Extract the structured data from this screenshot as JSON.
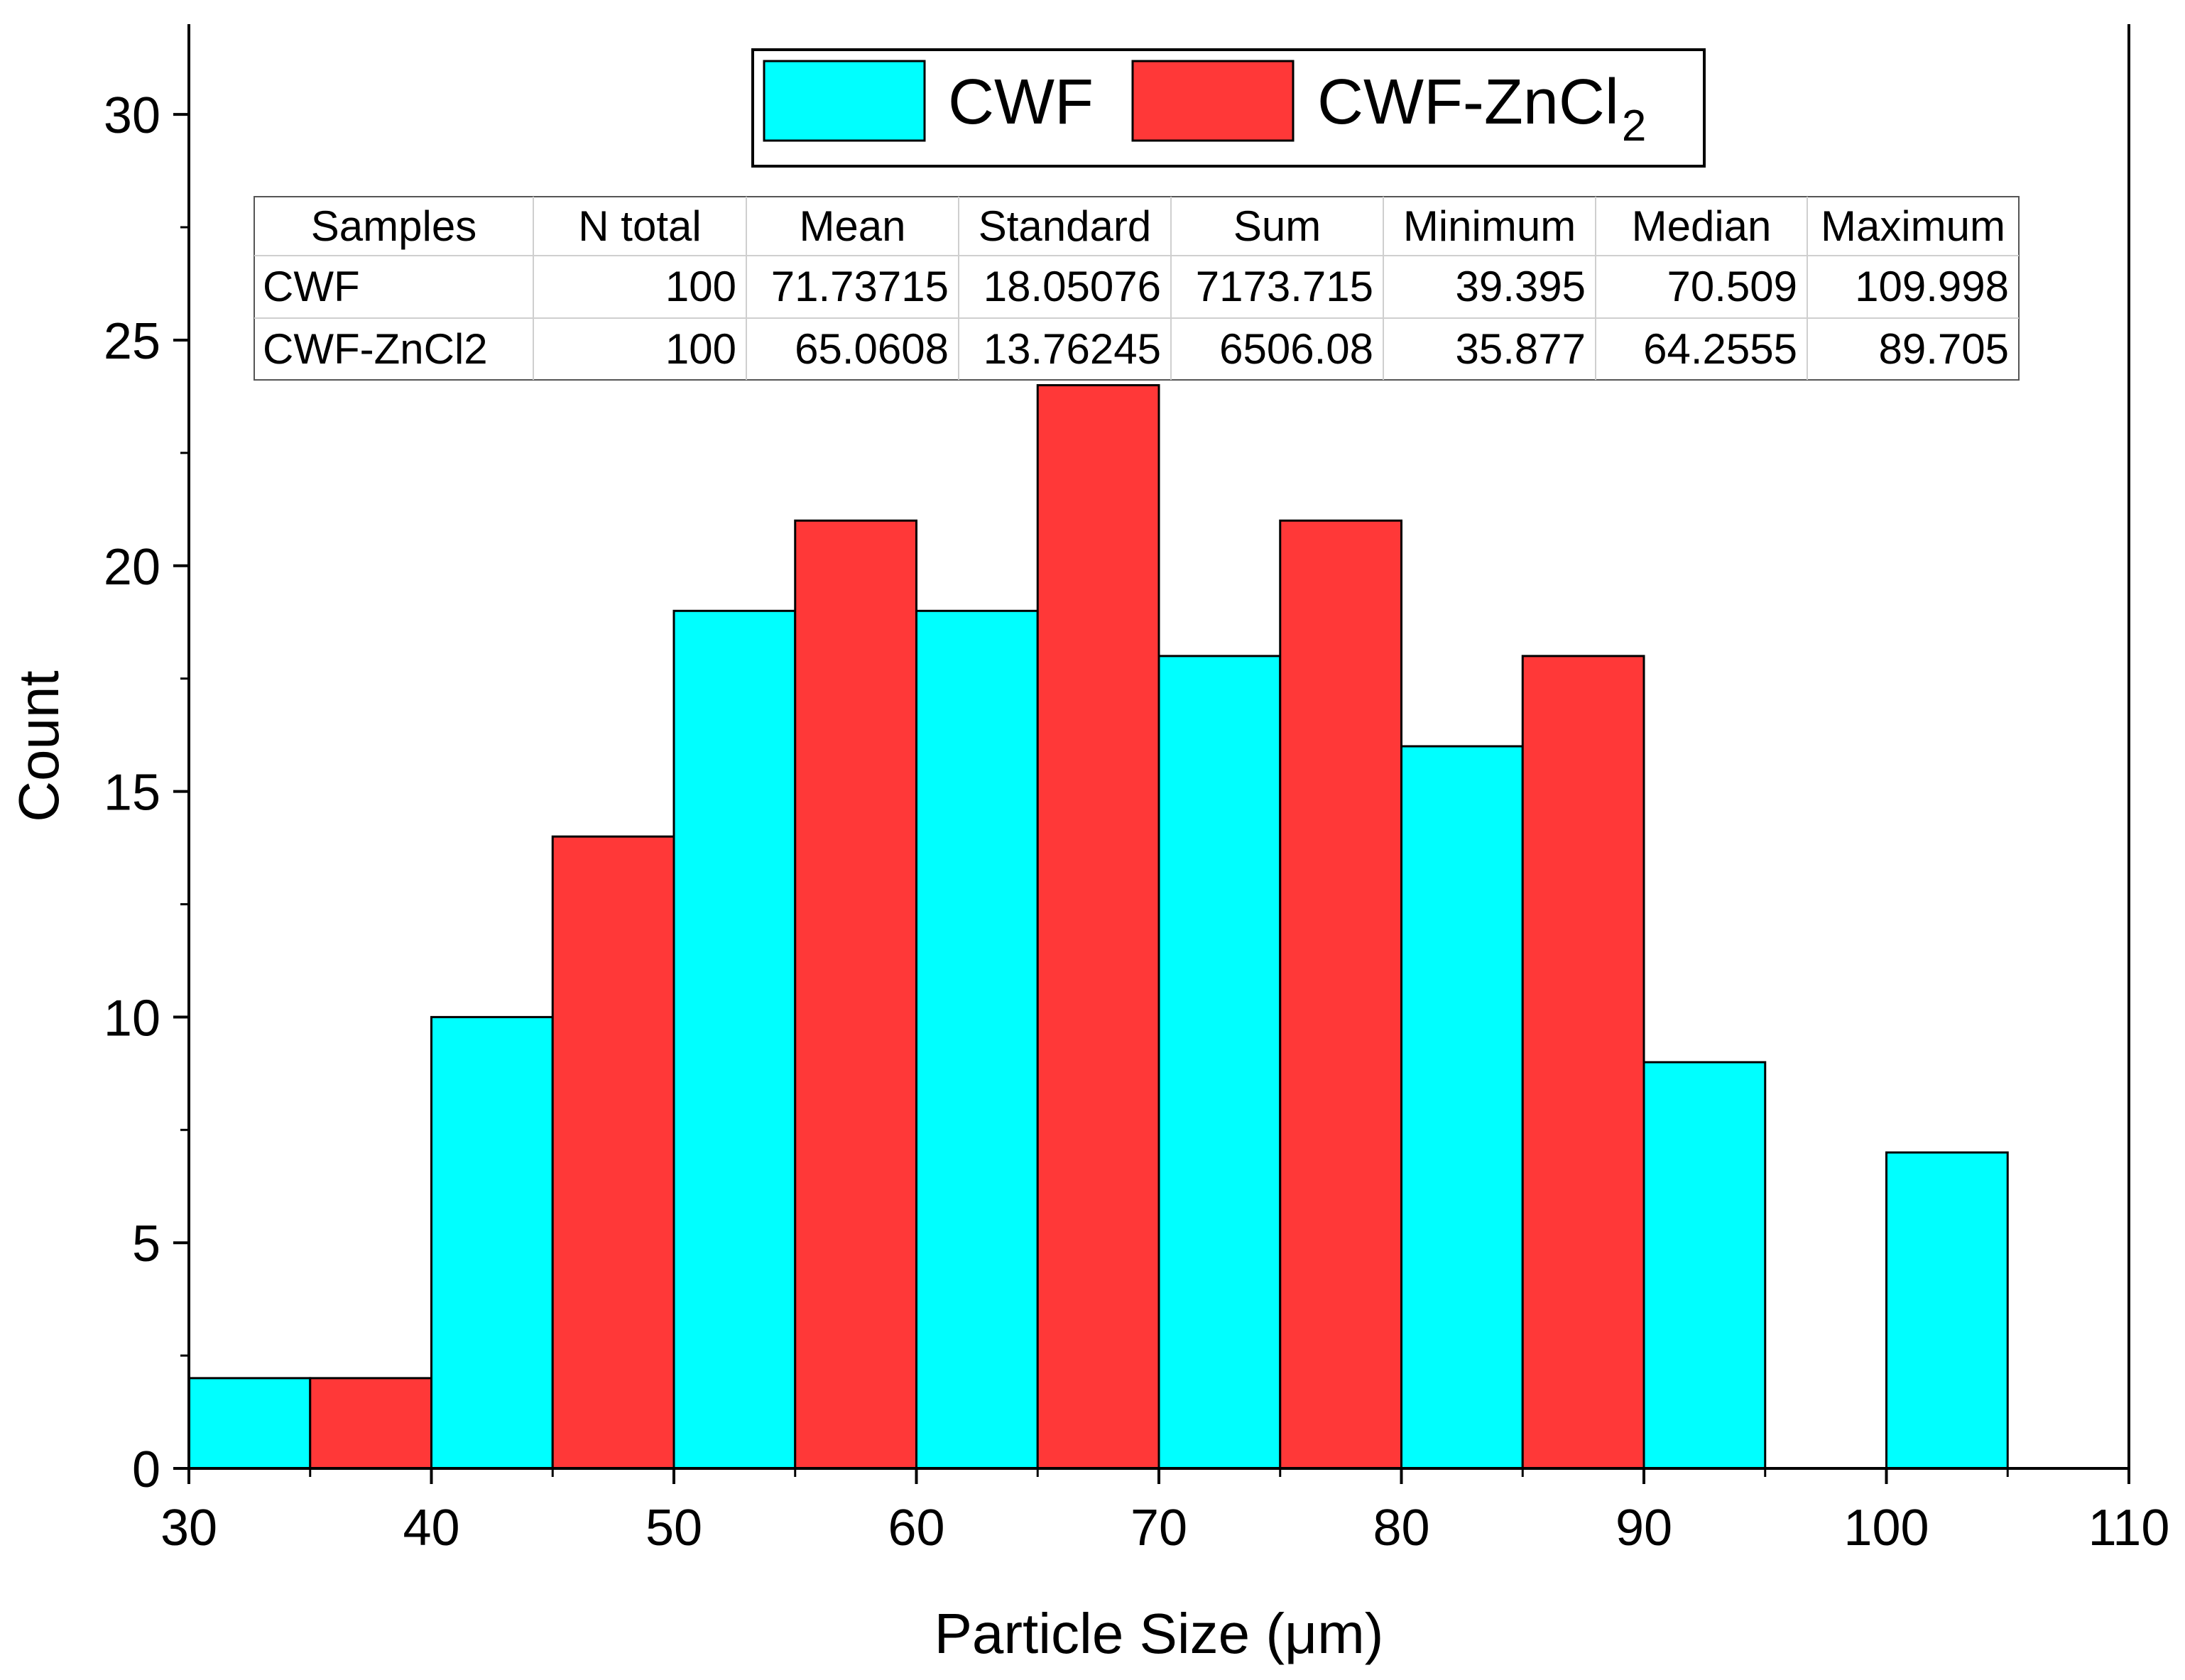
{
  "chart_data": {
    "type": "bar",
    "subtype": "histogram",
    "xlabel": "Particle Size (μm)",
    "ylabel": "Count",
    "xlim": [
      30,
      110
    ],
    "ylim": [
      0,
      32
    ],
    "x_ticks": [
      30,
      40,
      50,
      60,
      70,
      80,
      90,
      100,
      110
    ],
    "y_ticks": [
      0,
      5,
      10,
      15,
      20,
      25,
      30
    ],
    "x_tick_labels": [
      "30",
      "40",
      "50",
      "60",
      "70",
      "80",
      "90",
      "100",
      "110"
    ],
    "y_tick_labels": [
      "0",
      "5",
      "10",
      "15",
      "20",
      "25",
      "30"
    ],
    "grid": false,
    "legend_position": "top-center",
    "series": [
      {
        "name": "CWF",
        "legend_label": "CWF",
        "color": "#00FFFF",
        "bins": [
          {
            "x0": 30,
            "x1": 35,
            "count": 2
          },
          {
            "x0": 40,
            "x1": 45,
            "count": 10
          },
          {
            "x0": 50,
            "x1": 55,
            "count": 19
          },
          {
            "x0": 60,
            "x1": 65,
            "count": 19
          },
          {
            "x0": 70,
            "x1": 75,
            "count": 18
          },
          {
            "x0": 80,
            "x1": 85,
            "count": 16
          },
          {
            "x0": 90,
            "x1": 95,
            "count": 9
          },
          {
            "x0": 100,
            "x1": 105,
            "count": 7
          }
        ]
      },
      {
        "name": "CWF-ZnCl2",
        "legend_label": "CWF-ZnCl",
        "legend_subscript": "2",
        "color": "#FF3838",
        "bins": [
          {
            "x0": 35,
            "x1": 40,
            "count": 2
          },
          {
            "x0": 45,
            "x1": 50,
            "count": 14
          },
          {
            "x0": 55,
            "x1": 60,
            "count": 21
          },
          {
            "x0": 65,
            "x1": 70,
            "count": 24
          },
          {
            "x0": 75,
            "x1": 80,
            "count": 21
          },
          {
            "x0": 85,
            "x1": 90,
            "count": 18
          }
        ]
      }
    ],
    "stats_table": {
      "headers": [
        "Samples",
        "N total",
        "Mean",
        "Standard",
        "Sum",
        "Minimum",
        "Median",
        "Maximum"
      ],
      "rows": [
        [
          "CWF",
          "100",
          "71.73715",
          "18.05076",
          "7173.715",
          "39.395",
          "70.509",
          "109.998"
        ],
        [
          "CWF-ZnCl2",
          "100",
          "65.0608",
          "13.76245",
          "6506.08",
          "35.877",
          "64.2555",
          "89.705"
        ]
      ]
    }
  }
}
